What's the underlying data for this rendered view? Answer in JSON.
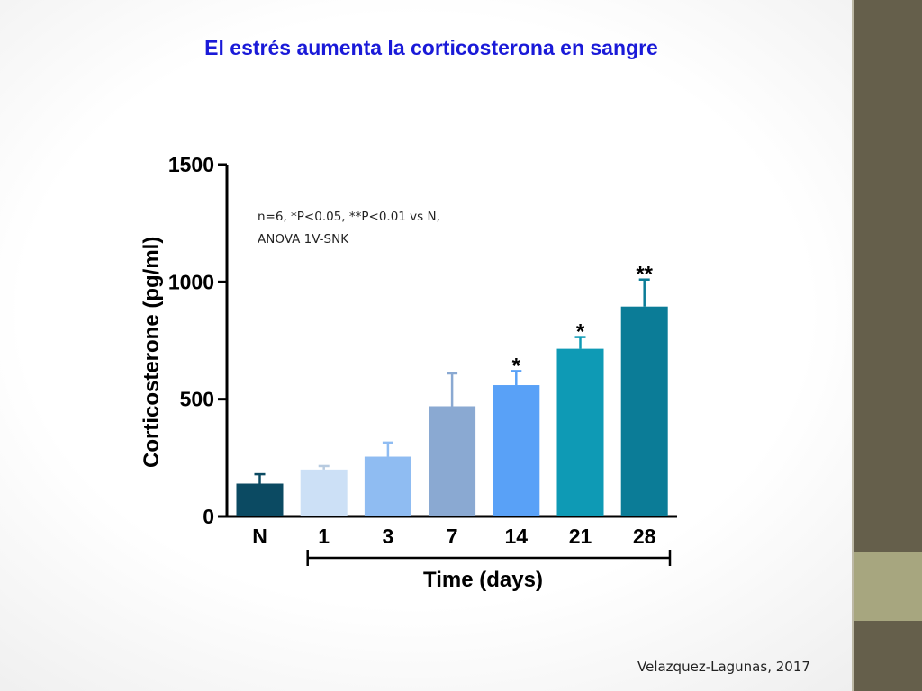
{
  "slide": {
    "title": "El estrés aumenta la corticosterona en sangre",
    "citation": "Velazquez-Lagunas, 2017"
  },
  "colors": {
    "title": "#1a1ad8",
    "side_bar": "#655f4b",
    "side_accent": "#a7a67f",
    "axis": "#000000"
  },
  "chart_data": {
    "type": "bar",
    "title": "",
    "ylabel": "Corticosterone (pg/ml)",
    "xlabel": "Time (days)",
    "ylim": [
      0,
      1500
    ],
    "yticks": [
      0,
      500,
      1000,
      1500
    ],
    "grid": false,
    "annotation_lines": [
      "n=6, *P<0.05, **P<0.01 vs N,",
      "ANOVA 1V-SNK"
    ],
    "categories": [
      "N",
      "1",
      "3",
      "7",
      "14",
      "21",
      "28"
    ],
    "values": [
      140,
      200,
      255,
      470,
      560,
      715,
      895
    ],
    "errors": [
      40,
      15,
      60,
      140,
      60,
      50,
      115
    ],
    "significance": [
      "",
      "",
      "",
      "",
      "*",
      "*",
      "**"
    ],
    "colors": [
      "#0b4a62",
      "#cce0f6",
      "#8fbcf2",
      "#8aa9d2",
      "#59a1f7",
      "#0e9ab5",
      "#0b7c97"
    ],
    "error_colors": [
      "#0b4a62",
      "#b8cbe0",
      "#8fbcf2",
      "#8aa9d2",
      "#59a1f7",
      "#0e9ab5",
      "#0b7c97"
    ]
  }
}
